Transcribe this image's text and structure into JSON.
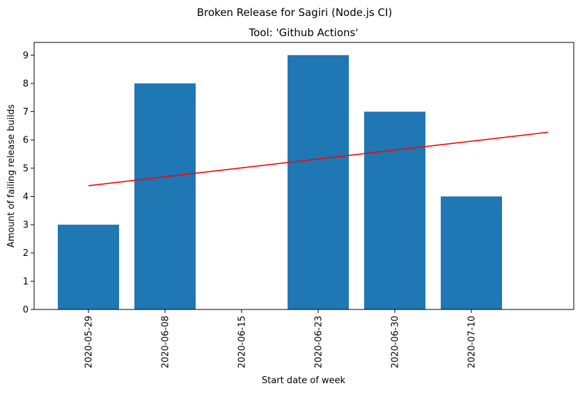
{
  "chart_data": {
    "type": "bar",
    "suptitle": "Broken Release for Sagiri (Node.js CI)",
    "title": "Tool: 'Github Actions'",
    "xlabel": "Start date of week",
    "ylabel": "Amount of failing release builds",
    "categories": [
      "2020-05-29",
      "2020-06-08",
      "2020-06-15",
      "2020-06-23",
      "2020-06-30",
      "2020-07-10"
    ],
    "values": [
      3,
      8,
      0,
      9,
      7,
      4
    ],
    "ylim": [
      0,
      9.45
    ],
    "yticks": [
      0,
      1,
      2,
      3,
      4,
      5,
      6,
      7,
      8,
      9
    ],
    "bar_color": "#1f77b4",
    "trend_line": {
      "color": "#ff0000",
      "x_start_index": 0,
      "x_end_index": 6,
      "y_start": 4.38,
      "y_end": 6.27
    },
    "grid": false,
    "legend": "none"
  }
}
